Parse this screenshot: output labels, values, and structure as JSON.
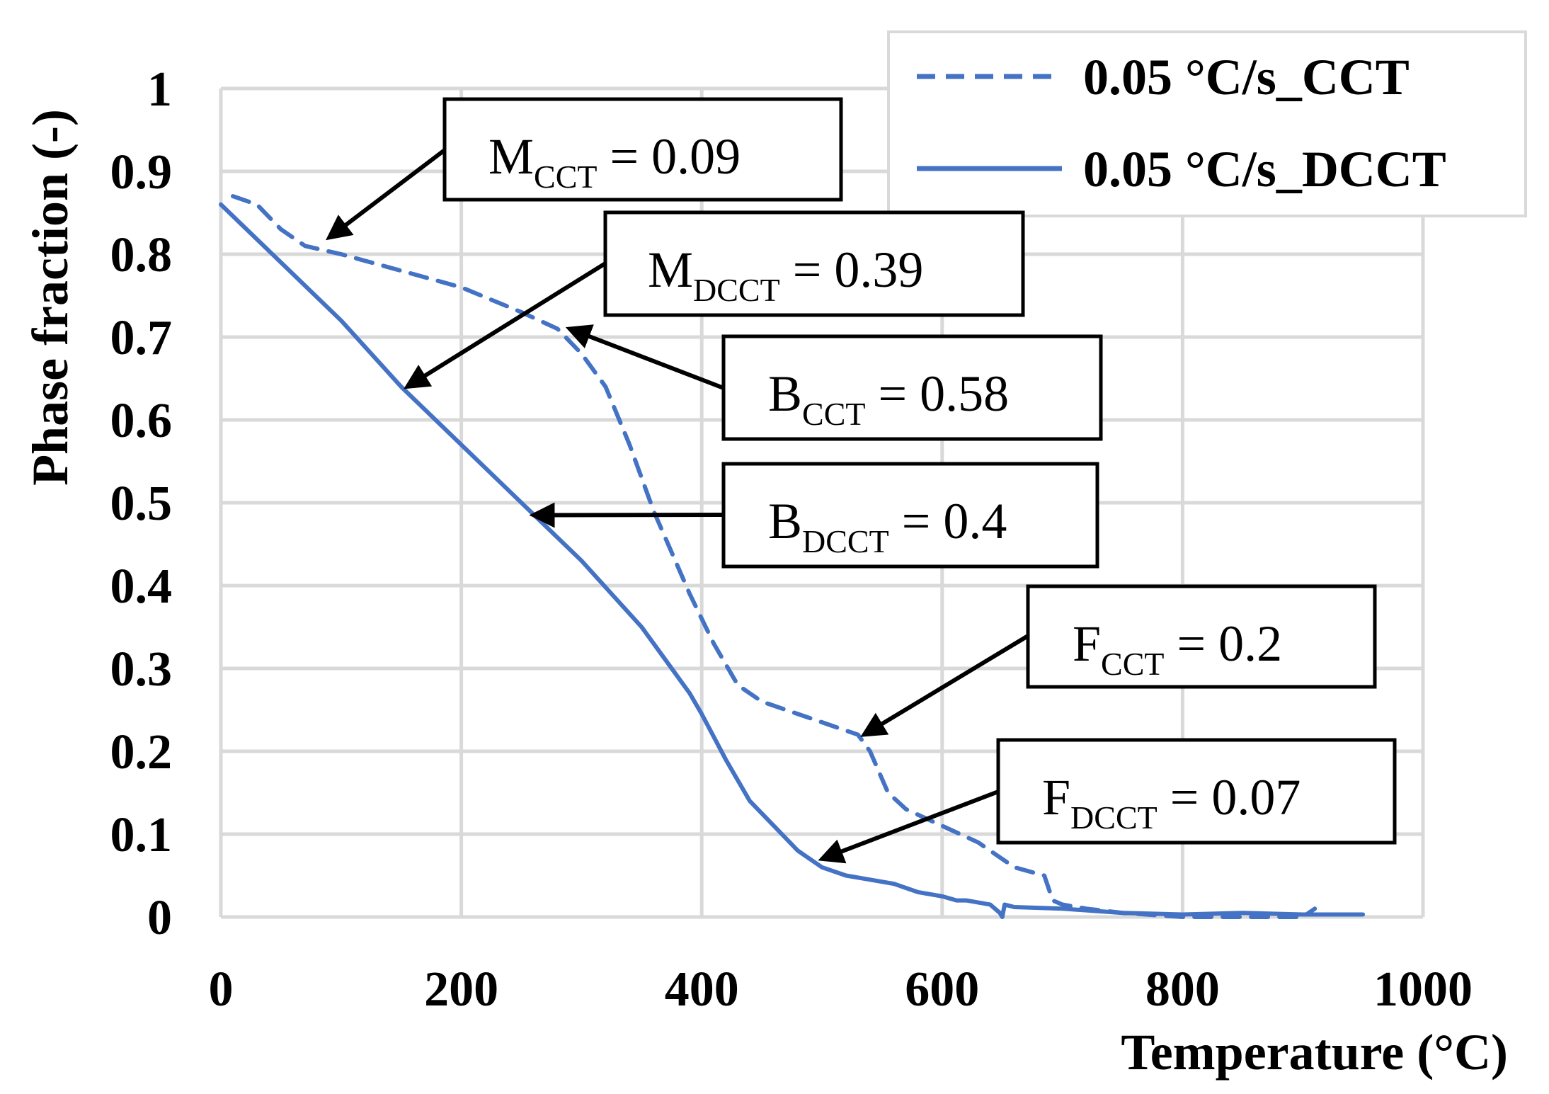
{
  "chart_data": {
    "type": "line",
    "xlabel": "Temperature (°C)",
    "ylabel": "Phase fraction (-)",
    "xlim": [
      0,
      1000
    ],
    "ylim": [
      0,
      1
    ],
    "xticks": [
      "0",
      "200",
      "400",
      "600",
      "800",
      "1000"
    ],
    "yticks": [
      "0",
      "0.1",
      "0.2",
      "0.3",
      "0.4",
      "0.5",
      "0.6",
      "0.7",
      "0.8",
      "0.9",
      "1"
    ],
    "grid": true,
    "legend_position": "top-right",
    "colors": {
      "series": "#4472c4",
      "arrow": "#000000",
      "grid": "#d9d9d9"
    },
    "series": [
      {
        "name": "0.05 °C/s_CCT",
        "style": "dashed",
        "x": [
          10,
          30,
          50,
          70,
          100,
          150,
          200,
          250,
          280,
          300,
          320,
          340,
          360,
          375,
          390,
          410,
          430,
          450,
          470,
          500,
          530,
          540,
          555,
          570,
          600,
          630,
          660,
          685,
          692,
          700,
          720,
          750,
          800,
          850,
          900,
          910
        ],
        "y": [
          0.87,
          0.86,
          0.83,
          0.81,
          0.8,
          0.78,
          0.76,
          0.73,
          0.71,
          0.68,
          0.64,
          0.57,
          0.49,
          0.44,
          0.39,
          0.33,
          0.28,
          0.26,
          0.25,
          0.235,
          0.22,
          0.2,
          0.15,
          0.13,
          0.11,
          0.09,
          0.06,
          0.05,
          0.02,
          0.015,
          0.01,
          0.005,
          0.0,
          0.0,
          0.0,
          0.01
        ]
      },
      {
        "name": "0.05 °C/s_DCCT",
        "style": "solid",
        "x": [
          0,
          50,
          100,
          150,
          200,
          250,
          300,
          350,
          370,
          390,
          400,
          420,
          440,
          460,
          480,
          500,
          520,
          540,
          560,
          580,
          600,
          612,
          620,
          640,
          648,
          650,
          652,
          660,
          700,
          750,
          800,
          850,
          900,
          950
        ],
        "y": [
          0.86,
          0.79,
          0.72,
          0.64,
          0.57,
          0.5,
          0.43,
          0.35,
          0.31,
          0.27,
          0.245,
          0.19,
          0.14,
          0.11,
          0.08,
          0.06,
          0.05,
          0.045,
          0.04,
          0.03,
          0.025,
          0.02,
          0.02,
          0.015,
          0.005,
          0.0,
          0.015,
          0.012,
          0.01,
          0.005,
          0.003,
          0.005,
          0.003,
          0.003
        ]
      }
    ],
    "annotations": [
      {
        "main": "M",
        "sub": "CCT",
        "value": " = 0.09",
        "target_x": 90,
        "target_y": 0.82
      },
      {
        "main": "M",
        "sub": "DCCT",
        "value": " = 0.39",
        "target_x": 155,
        "target_y": 0.64
      },
      {
        "main": "B",
        "sub": "CCT",
        "value": " = 0.58",
        "target_x": 290,
        "target_y": 0.71
      },
      {
        "main": "B",
        "sub": "DCCT",
        "value": " = 0.4",
        "target_x": 260,
        "target_y": 0.485
      },
      {
        "main": "F",
        "sub": "CCT",
        "value": " = 0.2",
        "target_x": 535,
        "target_y": 0.22
      },
      {
        "main": "F",
        "sub": "DCCT",
        "value": " = 0.07",
        "target_x": 500,
        "target_y": 0.07
      }
    ]
  }
}
